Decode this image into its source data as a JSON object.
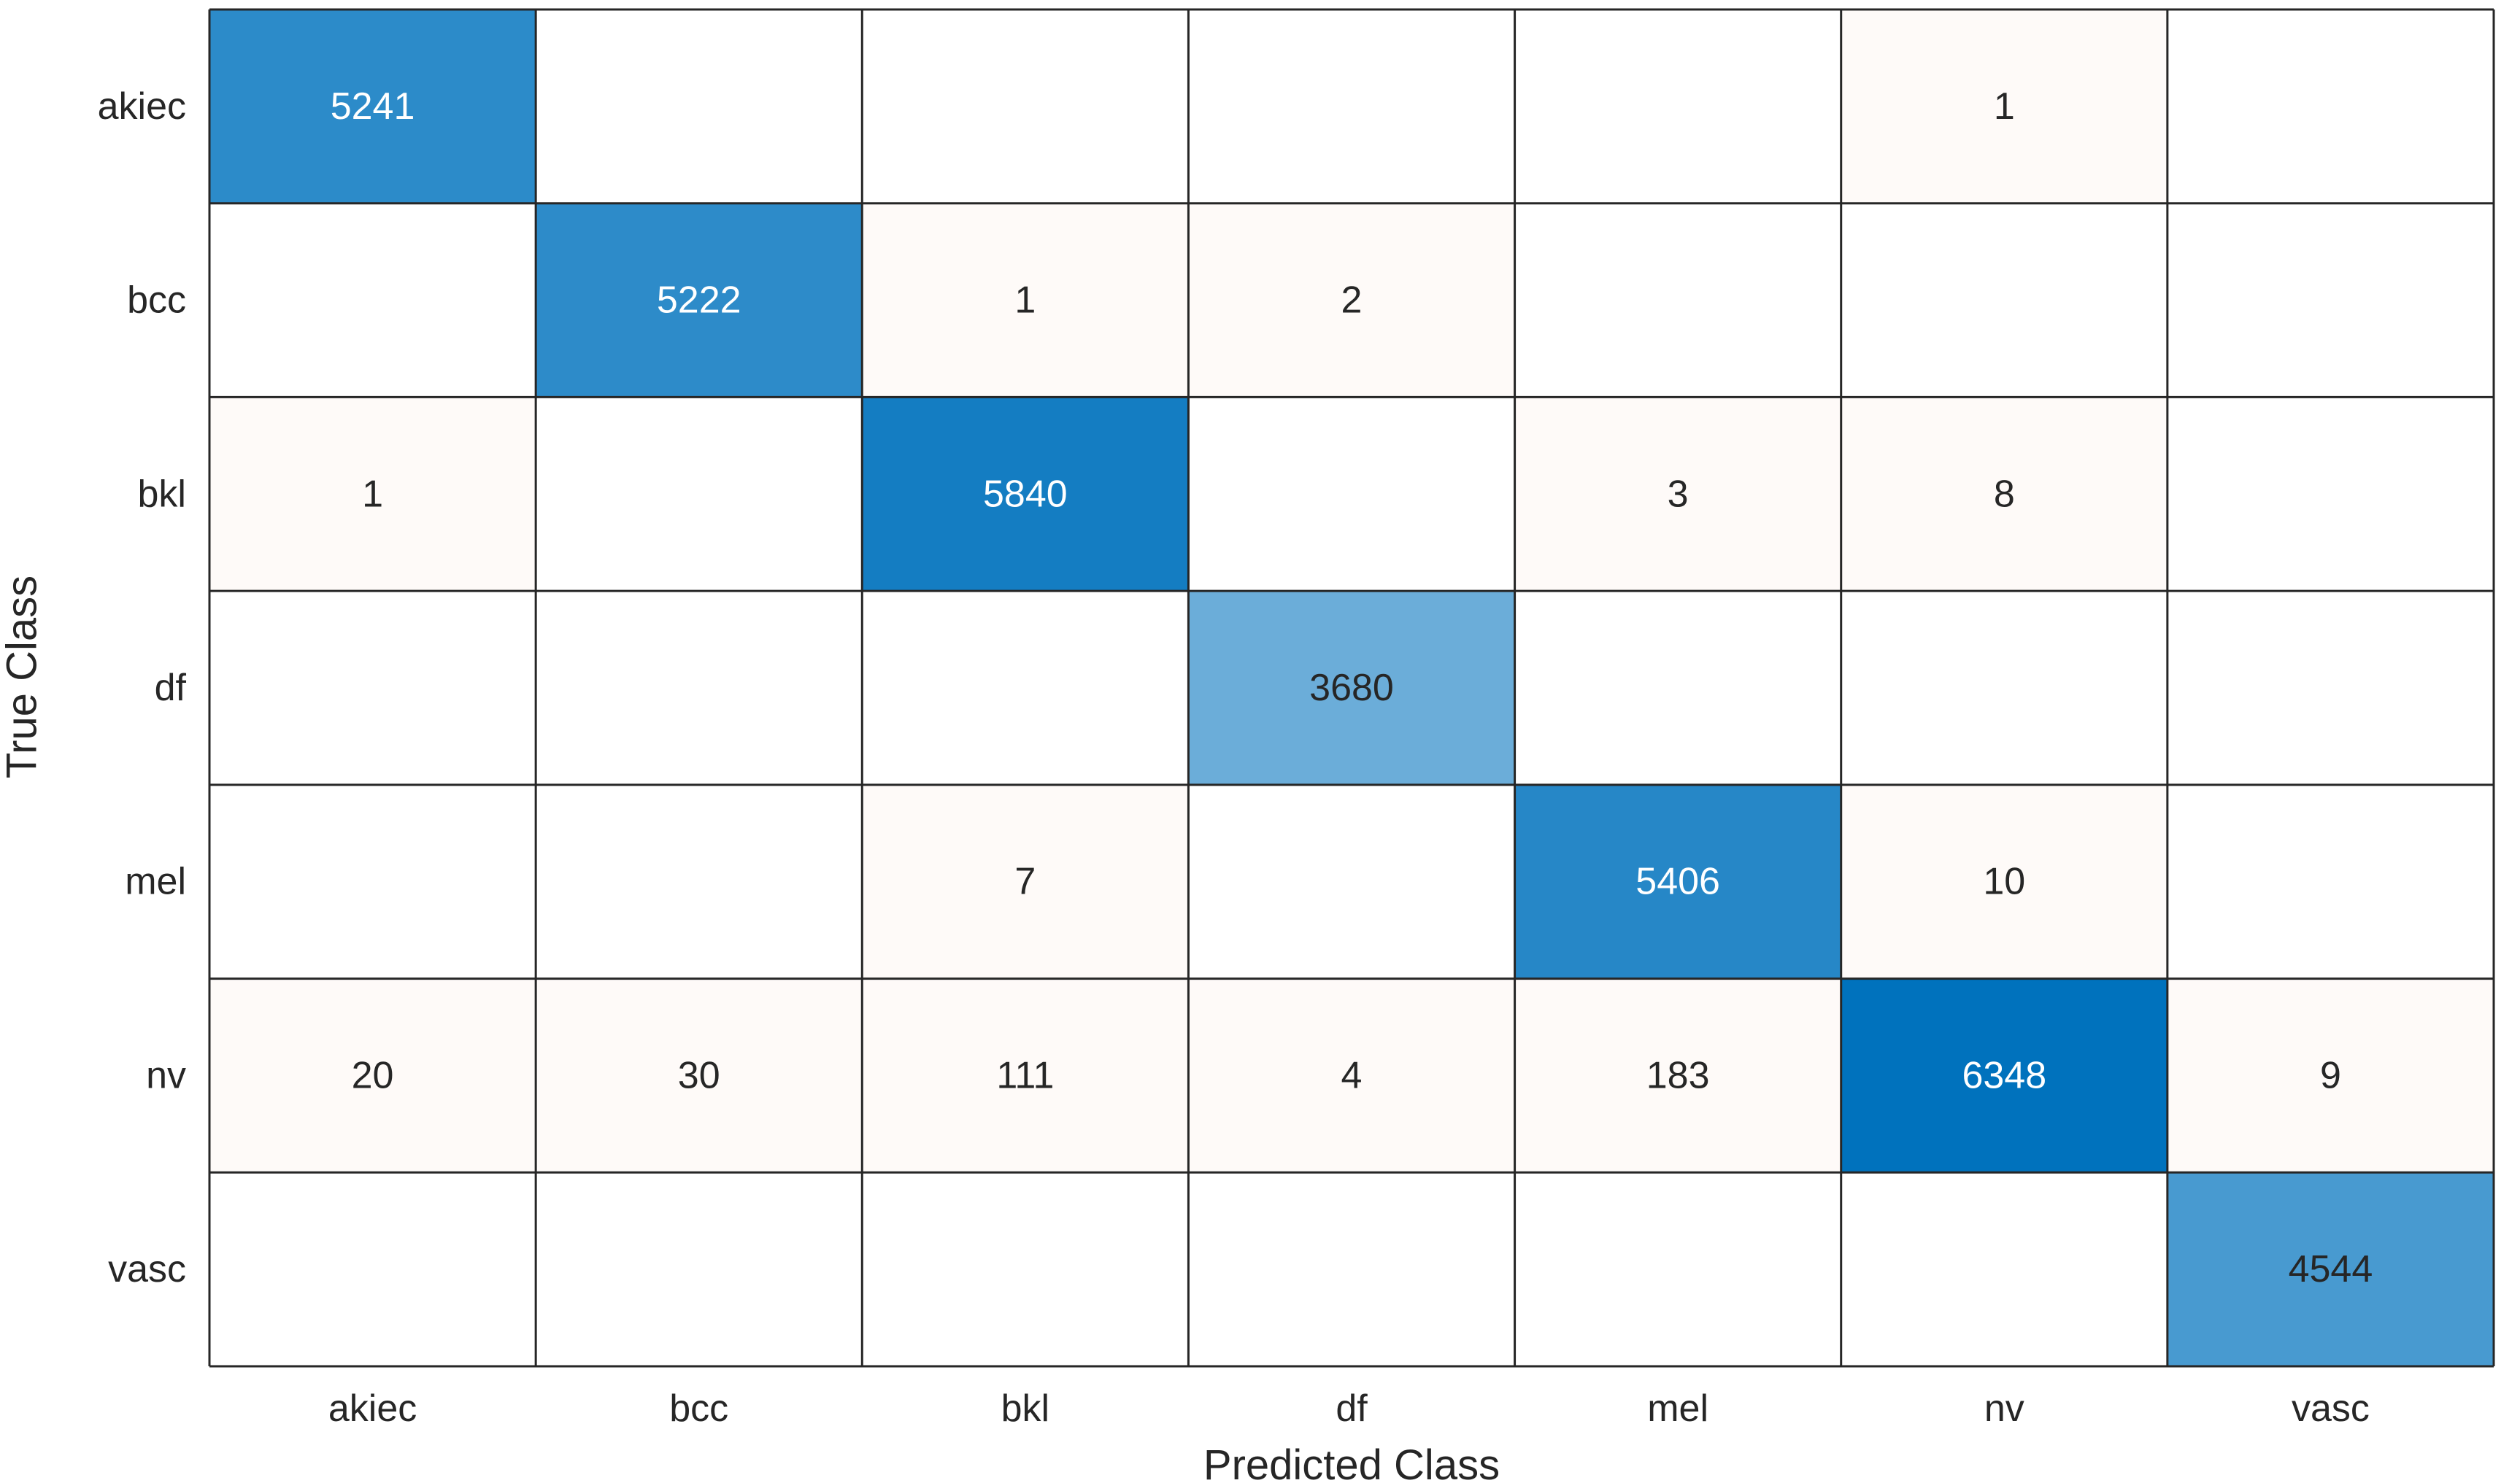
{
  "chart_data": {
    "type": "heatmap",
    "title": "",
    "xlabel": "Predicted Class",
    "ylabel": "True Class",
    "x_categories": [
      "akiec",
      "bcc",
      "bkl",
      "df",
      "mel",
      "nv",
      "vasc"
    ],
    "y_categories": [
      "akiec",
      "bcc",
      "bkl",
      "df",
      "mel",
      "nv",
      "vasc"
    ],
    "values": [
      [
        5241,
        null,
        null,
        null,
        null,
        1,
        null
      ],
      [
        null,
        5222,
        1,
        2,
        null,
        null,
        null
      ],
      [
        1,
        null,
        5840,
        null,
        3,
        8,
        null
      ],
      [
        null,
        null,
        null,
        3680,
        null,
        null,
        null
      ],
      [
        null,
        null,
        7,
        null,
        5406,
        10,
        null
      ],
      [
        20,
        30,
        111,
        4,
        183,
        6348,
        9
      ],
      [
        null,
        null,
        null,
        null,
        null,
        null,
        4544
      ]
    ],
    "grid": true,
    "legend": "none",
    "colors": {
      "diagonal_max": "#0072bd",
      "diagonal_min": "#ffffff",
      "off_diagonal_max": "#d95319",
      "empty": "#ffffff",
      "grid_line": "#262626",
      "text_dark": "#262626",
      "text_light": "#ffffff"
    }
  }
}
